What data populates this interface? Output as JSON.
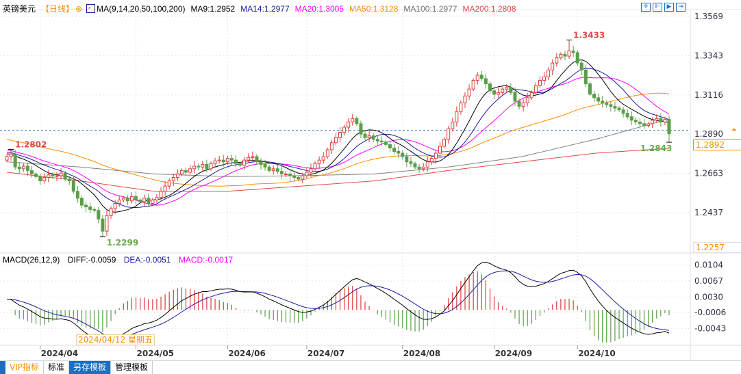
{
  "header": {
    "symbol": "英镑美元",
    "period": "【日线】",
    "ma_label": "MA(9,14,20,50,100,200)",
    "ma9": "MA9:1.2952",
    "ma14": "MA14:1.2977",
    "ma20": "MA20:1.3005",
    "ma50": "MA50:1.3128",
    "ma100": "MA100:1.2977",
    "ma200": "MA200:1.2808"
  },
  "macd_header": {
    "label": "MACD(26,12,9)",
    "diff": "DIFF:-0.0059",
    "dea": "DEA:-0.0051",
    "macd": "MACD:-0.0017"
  },
  "toolbar": {
    "icons": [
      "crosshair-icon",
      "range-icon",
      "zoom-fit-icon",
      "move-right-icon"
    ]
  },
  "tooltip_date": "2024/04/12 星期五",
  "current_price": "1.2892",
  "axis_bottom_value": "1.2257",
  "tabs": [
    "VIP指标",
    "标准",
    "另存模板",
    "管理模板"
  ],
  "colors": {
    "up": "#e03a3a",
    "down": "#5a9e48",
    "ma9": "#000000",
    "ma14": "#1a1aa0",
    "ma20": "#ff00ff",
    "ma50": "#ff8c00",
    "ma100": "#808080",
    "ma200": "#e04848",
    "accent": "#1a6fc0"
  },
  "chart_data": [
    {
      "type": "candlestick",
      "title": "英镑美元",
      "price_ticks": [
        "1.3569",
        "1.3343",
        "1.3116",
        "1.2890",
        "1.2663",
        "1.2437"
      ],
      "ylim": [
        1.2257,
        1.3569
      ],
      "x_ticks": [
        {
          "label": "2024/04",
          "index": 8
        },
        {
          "label": "2024/05",
          "index": 31
        },
        {
          "label": "2024/06",
          "index": 53
        },
        {
          "label": "2024/07",
          "index": 72
        },
        {
          "label": "2024/08",
          "index": 95
        },
        {
          "label": "2024/09",
          "index": 117
        },
        {
          "label": "2024/10",
          "index": 137
        }
      ],
      "first_open": 1.274,
      "closes": [
        1.276,
        1.2775,
        1.27,
        1.269,
        1.2705,
        1.268,
        1.266,
        1.2645,
        1.262,
        1.264,
        1.2655,
        1.2648,
        1.265,
        1.2665,
        1.263,
        1.262,
        1.256,
        1.252,
        1.248,
        1.247,
        1.2455,
        1.245,
        1.24,
        1.233,
        1.242,
        1.246,
        1.249,
        1.251,
        1.252,
        1.2505,
        1.253,
        1.251,
        1.25,
        1.252,
        1.249,
        1.251,
        1.2525,
        1.256,
        1.259,
        1.262,
        1.264,
        1.266,
        1.268,
        1.267,
        1.269,
        1.2705,
        1.27,
        1.2715,
        1.269,
        1.272,
        1.2735,
        1.274,
        1.273,
        1.275,
        1.274,
        1.272,
        1.271,
        1.274,
        1.2755,
        1.276,
        1.273,
        1.2715,
        1.27,
        1.268,
        1.269,
        1.2675,
        1.266,
        1.266,
        1.265,
        1.264,
        1.263,
        1.265,
        1.267,
        1.269,
        1.272,
        1.274,
        1.276,
        1.28,
        1.284,
        1.287,
        1.29,
        1.293,
        1.296,
        1.298,
        1.295,
        1.289,
        1.287,
        1.288,
        1.286,
        1.285,
        1.2845,
        1.283,
        1.281,
        1.279,
        1.278,
        1.276,
        1.273,
        1.272,
        1.27,
        1.269,
        1.27,
        1.273,
        1.275,
        1.278,
        1.282,
        1.286,
        1.292,
        1.296,
        1.302,
        1.307,
        1.311,
        1.315,
        1.32,
        1.323,
        1.321,
        1.318,
        1.314,
        1.312,
        1.313,
        1.315,
        1.316,
        1.313,
        1.308,
        1.305,
        1.307,
        1.31,
        1.313,
        1.317,
        1.32,
        1.322,
        1.326,
        1.33,
        1.333,
        1.335,
        1.334,
        1.337,
        1.336,
        1.33,
        1.326,
        1.318,
        1.312,
        1.31,
        1.308,
        1.307,
        1.306,
        1.305,
        1.304,
        1.303,
        1.301,
        1.299,
        1.297,
        1.296,
        1.295,
        1.294,
        1.295,
        1.297,
        1.298,
        1.296,
        1.2975,
        1.2892
      ],
      "ma100": [
        1.273,
        1.27,
        1.266,
        1.2645,
        1.265,
        1.266,
        1.27,
        1.276,
        1.286,
        1.2977
      ],
      "ma200": [
        1.267,
        1.262,
        1.256,
        1.256,
        1.259,
        1.262,
        1.268,
        1.273,
        1.278,
        1.2808
      ],
      "annotations": [
        {
          "label": "1.2802",
          "kind": "high",
          "value": 1.2802,
          "index": 1
        },
        {
          "label": "1.2299",
          "kind": "low",
          "value": 1.2299,
          "index": 23
        },
        {
          "label": "1.3433",
          "kind": "high",
          "value": 1.3433,
          "index": 135
        },
        {
          "label": "1.2843",
          "kind": "low",
          "value": 1.2843,
          "index": 159
        }
      ]
    },
    {
      "type": "macd",
      "params": [
        26,
        12,
        9
      ],
      "ticks": [
        "0.0104",
        "0.0067",
        "0.0030",
        "-0.0006",
        "-0.0043"
      ],
      "ylim": [
        -0.0075,
        0.0125
      ]
    }
  ]
}
